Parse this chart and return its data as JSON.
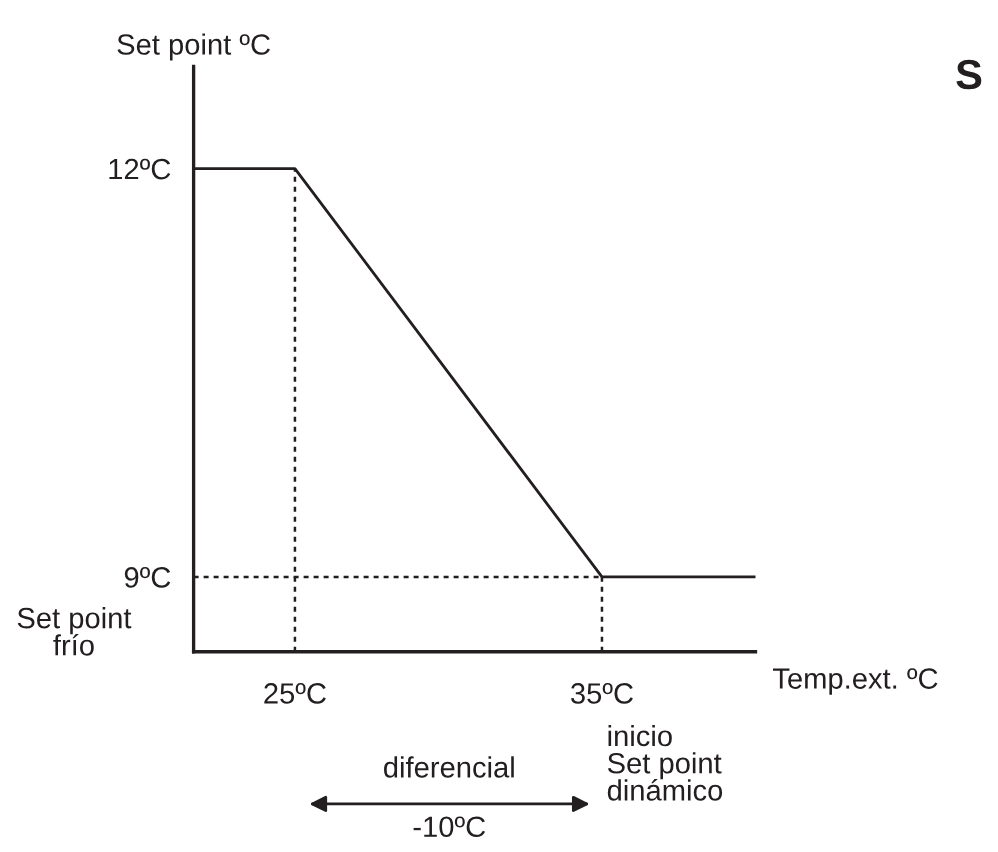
{
  "chart_data": {
    "type": "line",
    "xlabel": "Temp.ext. ºC",
    "ylabel": "Set point ºC",
    "x": [
      21.7,
      25,
      35,
      40
    ],
    "series": [
      {
        "color": "#231f20",
        "values": [
          12,
          12,
          9,
          9
        ]
      }
    ],
    "xlim": [
      21.7,
      40
    ],
    "ylim": [
      8.45,
      12.75
    ],
    "xticks": [
      {
        "value": 25,
        "label": "25ºC"
      },
      {
        "value": 35,
        "label": "35ºC"
      }
    ],
    "yticks": [
      {
        "value": 9,
        "label": "9ºC"
      },
      {
        "value": 12,
        "label": "12ºC"
      }
    ],
    "ref_lines": [
      {
        "axis": "x",
        "value": 25,
        "line_style": "dotted",
        "color": "#231f20"
      },
      {
        "axis": "x",
        "value": 35,
        "line_style": "dotted",
        "color": "#231f20"
      },
      {
        "axis": "y",
        "value": 9,
        "line_style": "dotted",
        "color": "#231f20"
      }
    ],
    "annotations": [
      "Set point\nfrío",
      "diferencial",
      "-10ºC",
      "inicio\nSet point\ndinámico",
      "S"
    ],
    "grid": false,
    "legend": false,
    "marker": "none",
    "line_style": "solid"
  }
}
